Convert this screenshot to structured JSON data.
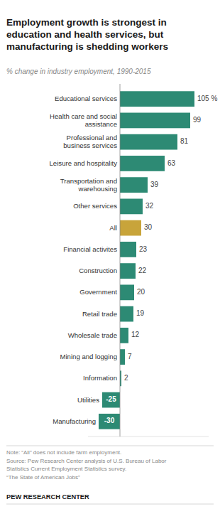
{
  "chart_data": {
    "type": "bar",
    "orientation": "horizontal",
    "title": "Employment growth is strongest in\neducation and health services, but\nmanufacturing is shedding workers",
    "subtitle": "% change in industry employment, 1990-2015",
    "categories": [
      "Educational services",
      "Health care and social\nassistance",
      "Professional and\nbusiness services",
      "Leisure and hospitality",
      "Transportation and\nwarehousing",
      "Other services",
      "All",
      "Financial activites",
      "Construction",
      "Government",
      "Retail trade",
      "Wholesale trade",
      "Mining and logging",
      "Information",
      "Utilities",
      "Manufacturing"
    ],
    "values": [
      105,
      99,
      81,
      63,
      39,
      32,
      30,
      23,
      22,
      20,
      19,
      12,
      7,
      2,
      -25,
      -30
    ],
    "value_labels": [
      "105 %",
      "99",
      "81",
      "63",
      "39",
      "32",
      "30",
      "23",
      "22",
      "20",
      "19",
      "12",
      "7",
      "2",
      "-25",
      "-30"
    ],
    "colors": [
      "#2d8a74",
      "#2d8a74",
      "#2d8a74",
      "#2d8a74",
      "#2d8a74",
      "#2d8a74",
      "#c8a43a",
      "#2d8a74",
      "#2d8a74",
      "#2d8a74",
      "#2d8a74",
      "#2d8a74",
      "#2d8a74",
      "#2d8a74",
      "#2d8a74",
      "#2d8a74"
    ],
    "xlim": [
      -45,
      125
    ],
    "data_labels": true,
    "grid": false,
    "tick_labels": "y",
    "note": "Note: “All” does not include farm employment.\nSource: Pew Research Center analysis of U.S. Bureau of Labor\nStatistics Current Employment Statistics survey.\n“The State of American Jobs”",
    "footer": "PEW RESEARCH CENTER"
  }
}
